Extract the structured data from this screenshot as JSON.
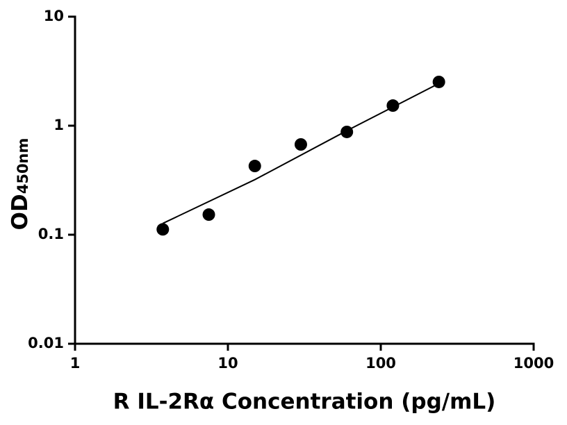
{
  "chart_data": {
    "type": "scatter",
    "x_label": "R IL-2Rα Concentration (pg/mL)",
    "y_label": "OD",
    "y_label_sub": "450nm",
    "log_x": true,
    "log_y": true,
    "xlim": [
      1,
      1000
    ],
    "xticks": [
      1,
      10,
      100,
      1000
    ],
    "ylim": [
      0.01,
      10
    ],
    "yticks": [
      0.01,
      0.1,
      1,
      10
    ],
    "series": [
      {
        "mode": "markers",
        "color": "#000000",
        "x": [
          3.75,
          7.5,
          15,
          30,
          60,
          120,
          240
        ],
        "values": [
          0.112,
          0.153,
          0.427,
          0.673,
          0.877,
          1.53,
          2.52
        ]
      },
      {
        "mode": "line",
        "color": "#000000",
        "x": [
          3.75,
          15,
          60,
          240
        ],
        "values": [
          0.127,
          0.32,
          0.9,
          2.44
        ]
      }
    ]
  }
}
